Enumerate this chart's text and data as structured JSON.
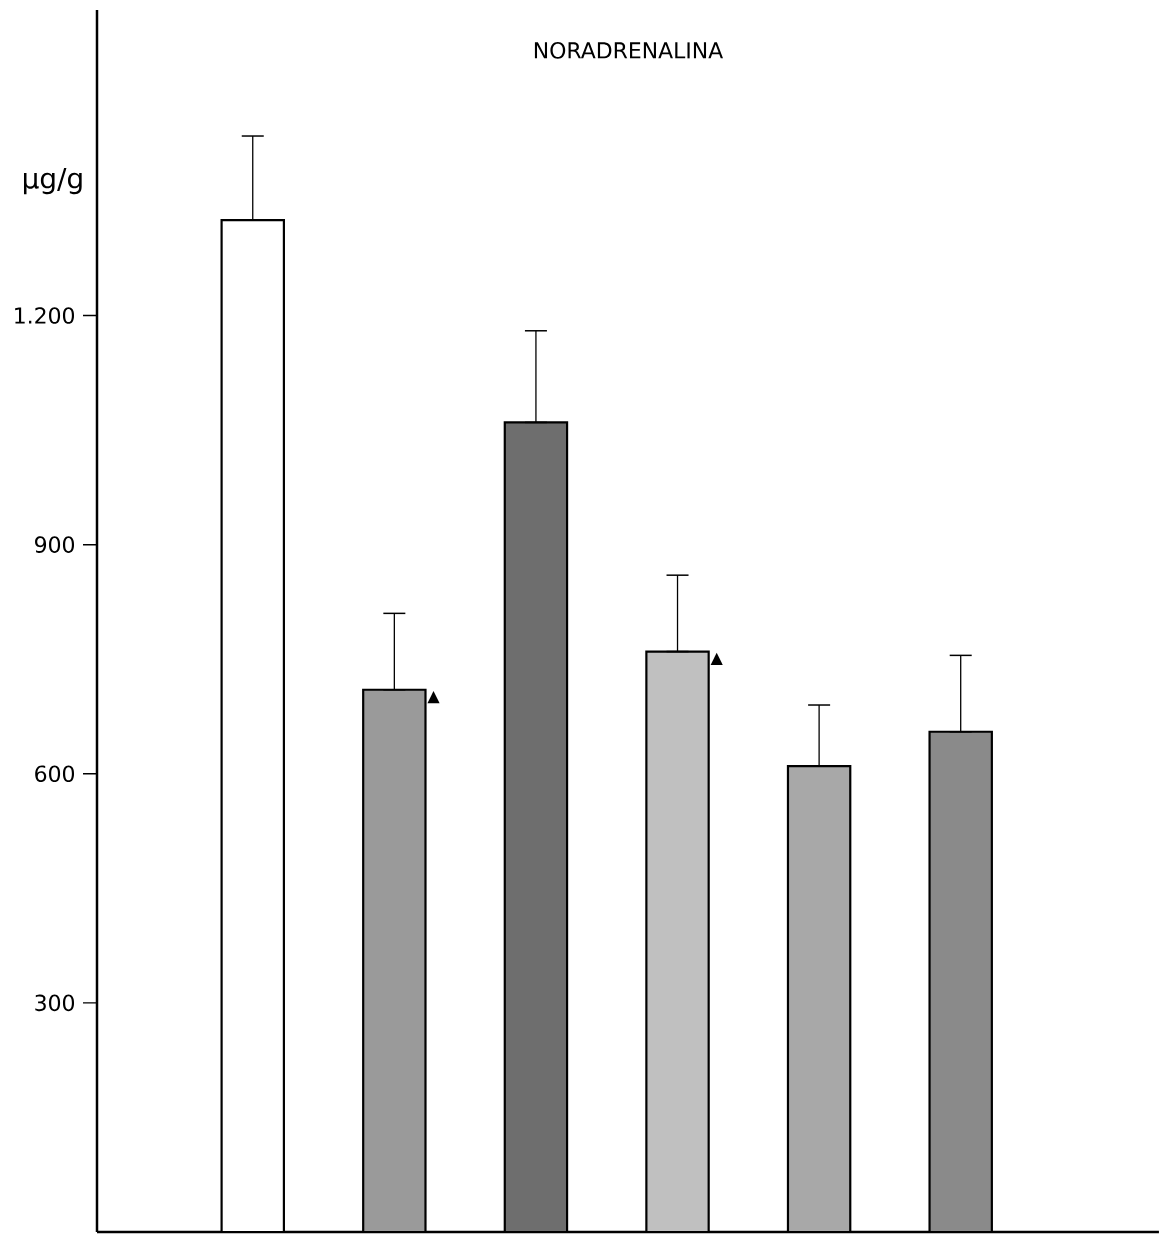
{
  "chart_data": {
    "type": "bar",
    "title": "NORADRENALINA",
    "ylabel": "μg/g",
    "categories": [
      null,
      null,
      null,
      null,
      null,
      null
    ],
    "values": [
      1325,
      710,
      1060,
      760,
      610,
      655
    ],
    "errors": [
      [
        1325,
        1435
      ],
      [
        710,
        810
      ],
      [
        1060,
        1180
      ],
      [
        760,
        860
      ],
      [
        610,
        690
      ],
      [
        655,
        755
      ]
    ],
    "colors": [
      "#ffffff",
      "#9a9a9a",
      "#6e6e6e",
      "#c0c0c0",
      "#a8a8a8",
      "#8a8a8a"
    ],
    "value_labels": [
      null,
      "▲",
      null,
      "▲",
      null,
      null
    ],
    "ylim": [
      0,
      1600
    ],
    "yticks": [
      300,
      600,
      900,
      {
        "value": 1200,
        "label": "1.200"
      }
    ]
  }
}
